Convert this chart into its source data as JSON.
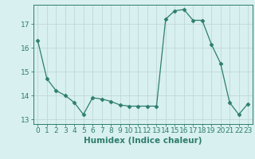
{
  "x": [
    0,
    1,
    2,
    3,
    4,
    5,
    6,
    7,
    8,
    9,
    10,
    11,
    12,
    13,
    14,
    15,
    16,
    17,
    18,
    19,
    20,
    21,
    22,
    23
  ],
  "y": [
    16.3,
    14.7,
    14.2,
    14.0,
    13.7,
    13.2,
    13.9,
    13.85,
    13.75,
    13.6,
    13.55,
    13.55,
    13.55,
    13.55,
    17.2,
    17.55,
    17.6,
    17.15,
    17.15,
    16.15,
    15.35,
    13.7,
    13.2,
    13.65
  ],
  "line_color": "#2e7d6e",
  "marker": "D",
  "marker_size": 2.5,
  "bg_color": "#d8f0f0",
  "grid_color": "#c0d8d8",
  "xlabel": "Humidex (Indice chaleur)",
  "xlim": [
    -0.5,
    23.5
  ],
  "ylim": [
    12.8,
    17.8
  ],
  "yticks": [
    13,
    14,
    15,
    16,
    17
  ],
  "xtick_labels": [
    "0",
    "1",
    "2",
    "3",
    "4",
    "5",
    "6",
    "7",
    "8",
    "9",
    "10",
    "11",
    "12",
    "13",
    "14",
    "15",
    "16",
    "17",
    "18",
    "19",
    "20",
    "21",
    "22",
    "23"
  ],
  "label_fontsize": 7.5,
  "tick_fontsize": 6.5
}
